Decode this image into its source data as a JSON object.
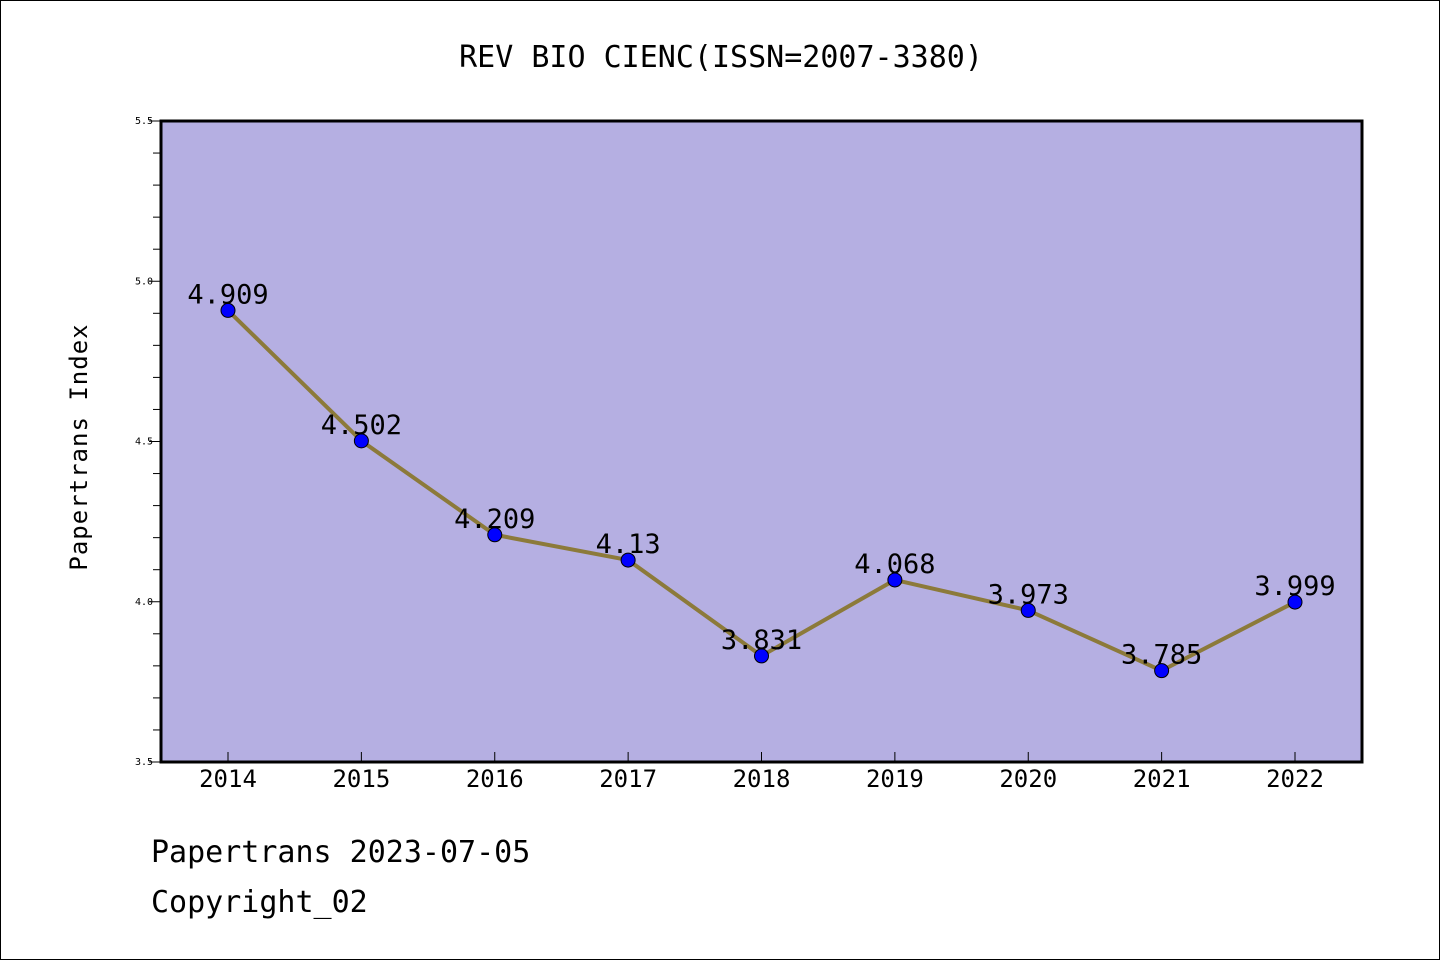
{
  "chart_data": {
    "type": "line",
    "title": "REV BIO CIENC(ISSN=2007-3380)",
    "xlabel": "",
    "ylabel": "Papertrans Index",
    "categories": [
      "2014",
      "2015",
      "2016",
      "2017",
      "2018",
      "2019",
      "2020",
      "2021",
      "2022"
    ],
    "series": [
      {
        "values": [
          4.909,
          4.502,
          4.209,
          4.13,
          3.831,
          4.068,
          3.973,
          3.785,
          3.999
        ],
        "labels": [
          "4.909",
          "4.502",
          "4.209",
          "4.13",
          "3.831",
          "4.068",
          "3.973",
          "3.785",
          "3.999"
        ],
        "line_color": "#8c7a3a",
        "marker_color": "#0000ff"
      }
    ],
    "ylim": [
      3.5,
      5.5
    ],
    "yticks": [
      "3.5",
      "4.0",
      "4.5",
      "5.0",
      "5.5"
    ],
    "grid": false,
    "plot_background": "#b5afe2"
  },
  "footer": {
    "source": "Papertrans 2023-07-05",
    "copyright": "Copyright_02"
  }
}
